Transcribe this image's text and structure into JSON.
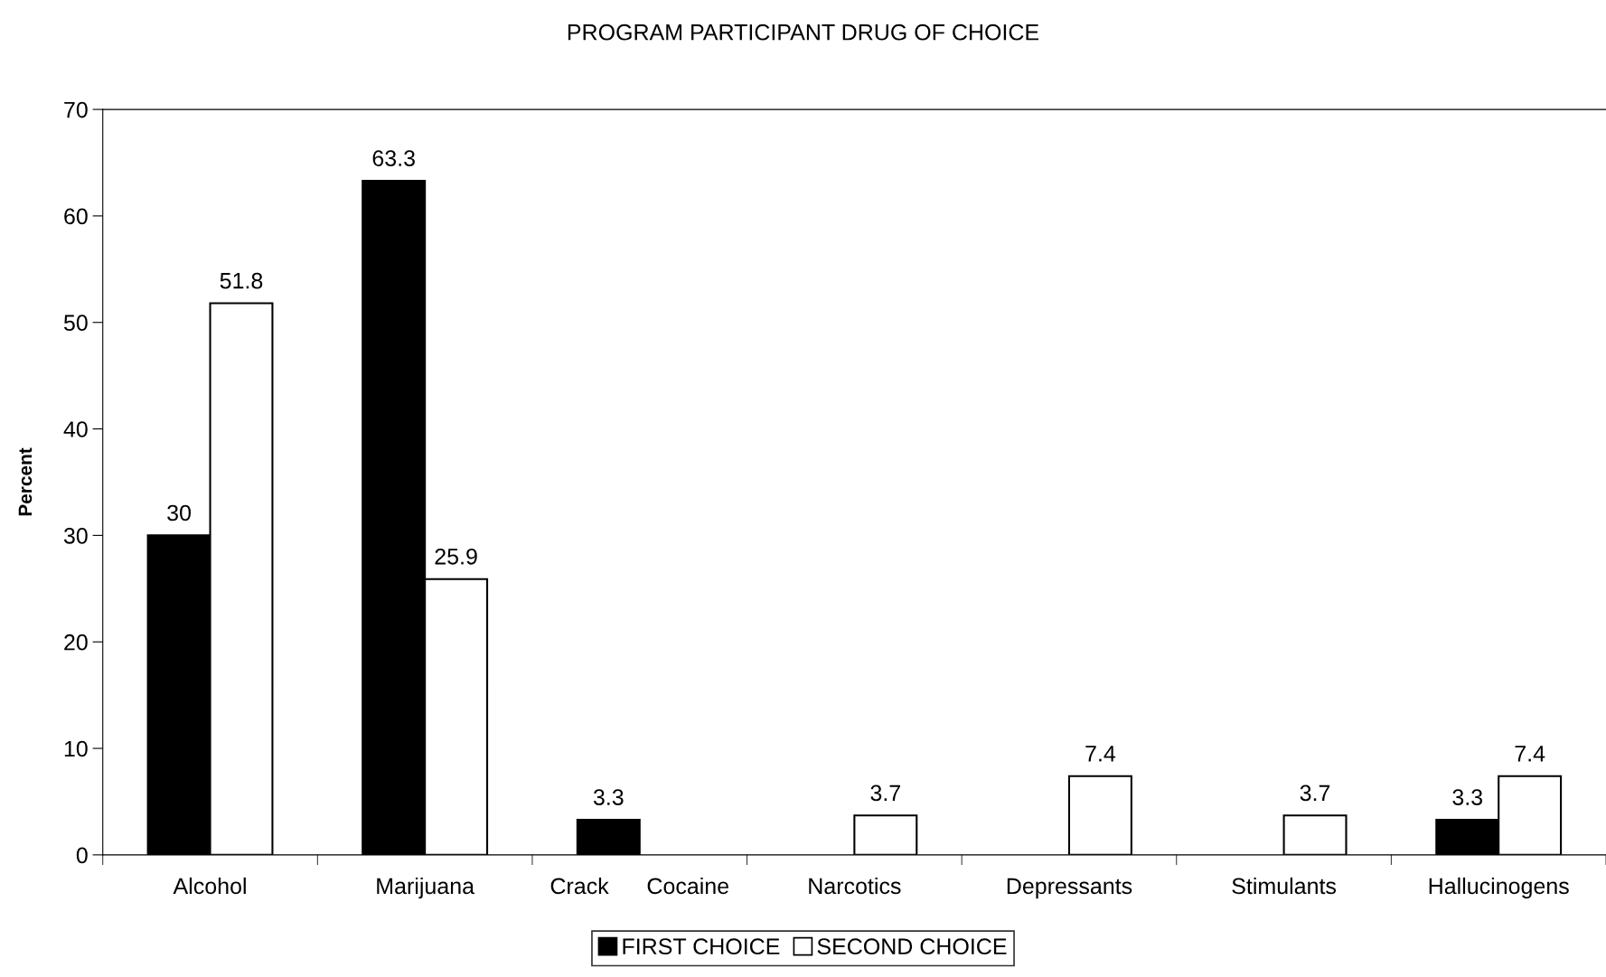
{
  "chart_data": {
    "type": "bar",
    "title": "PROGRAM PARTICIPANT DRUG OF CHOICE",
    "ylabel": "Percent",
    "categories": [
      "Alcohol",
      "Marijuana",
      "Crack      Cocaine",
      "Narcotics",
      "Depressants",
      "Stimulants",
      "Hallucinogens"
    ],
    "series": [
      {
        "name": "FIRST CHOICE",
        "color": "#000000",
        "values": [
          30,
          63.3,
          3.3,
          null,
          null,
          null,
          3.3
        ]
      },
      {
        "name": "SECOND CHOICE",
        "color": "#ffffff",
        "values": [
          51.8,
          25.9,
          null,
          3.7,
          7.4,
          3.7,
          7.4
        ]
      }
    ],
    "ylim": [
      0,
      70
    ],
    "yticks": [
      0,
      10,
      20,
      30,
      40,
      50,
      60,
      70
    ],
    "grid": false,
    "legend": "bottom",
    "data_labels": true
  }
}
